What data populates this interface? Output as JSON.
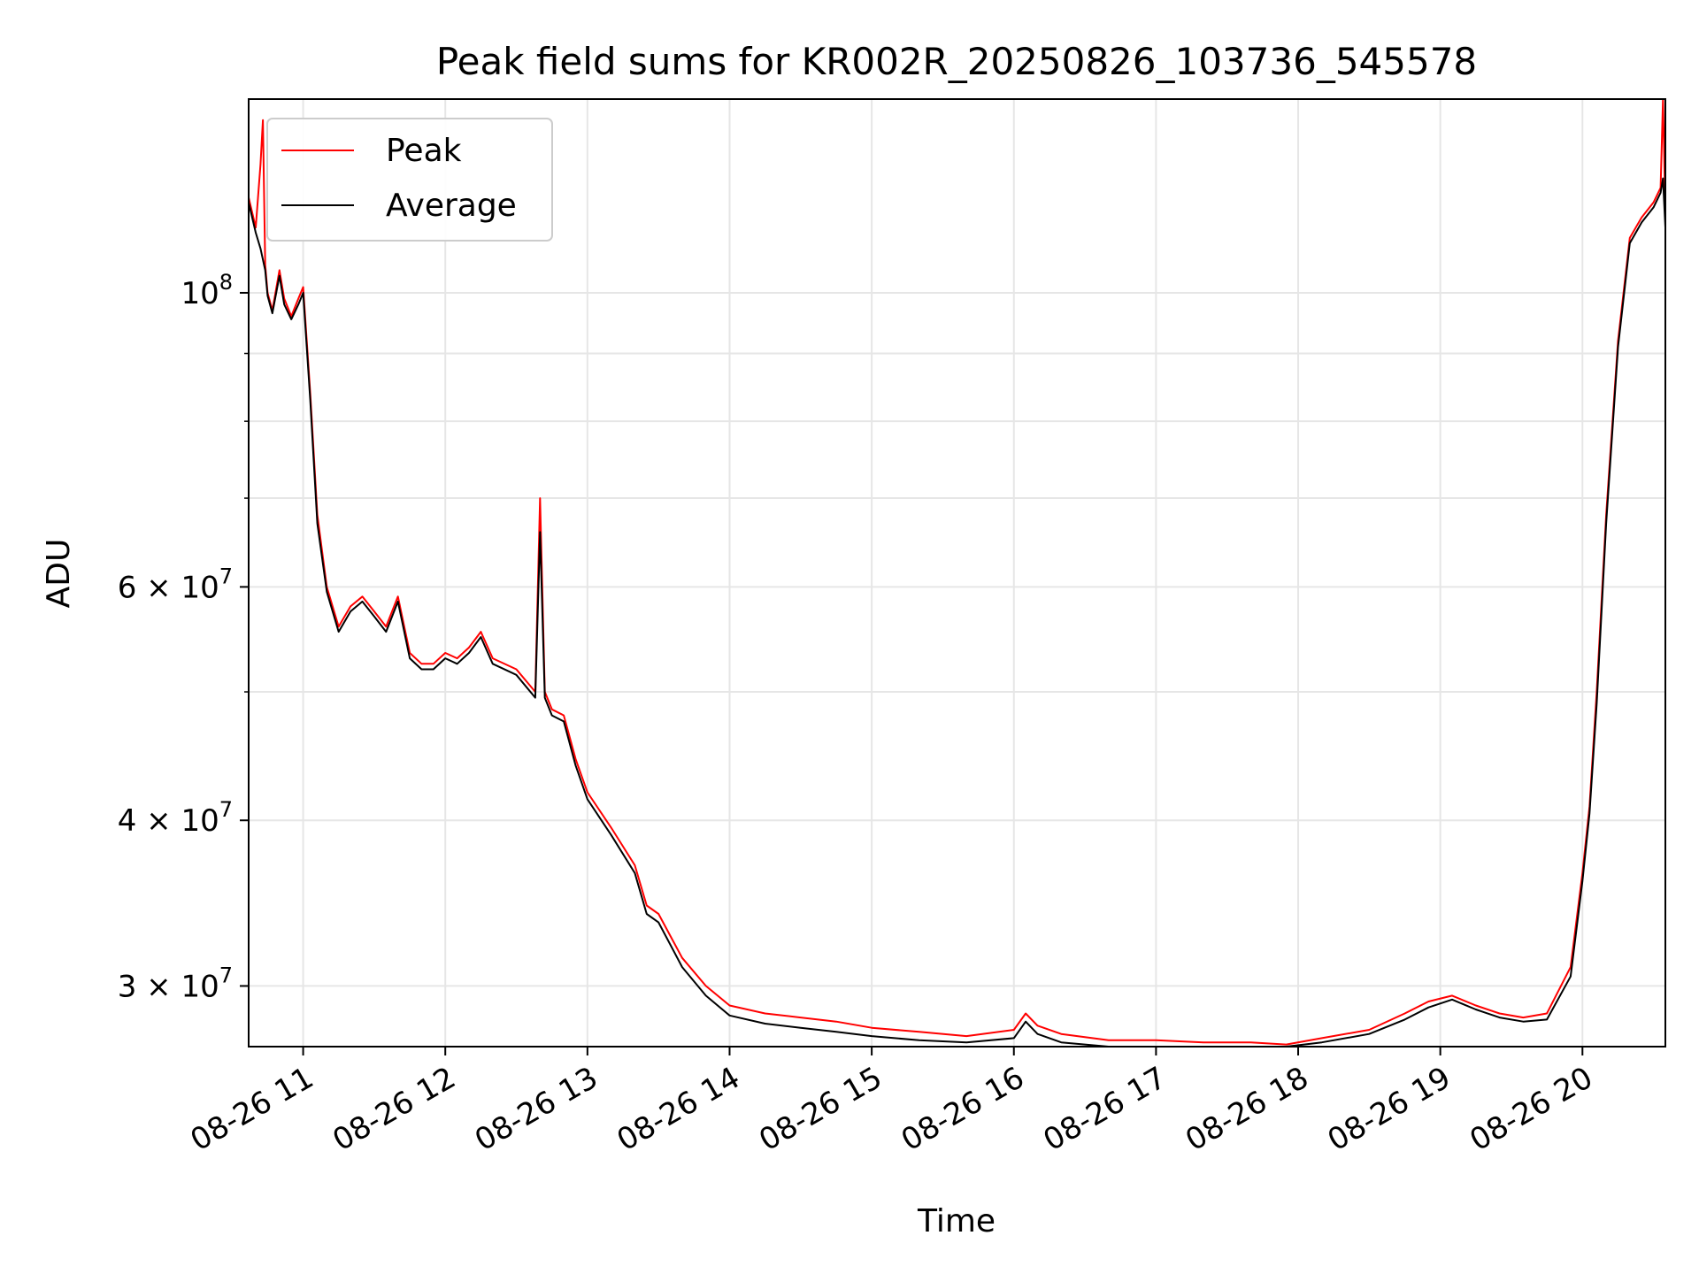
{
  "chart_data": {
    "type": "line",
    "title": "Peak field sums for KR002R_20250826_103736_545578",
    "xlabel": "Time",
    "ylabel": "ADU",
    "xscale": "time",
    "yscale": "log",
    "xlim": [
      "2025-08-26 10:37",
      "2025-08-26 20:35"
    ],
    "ylim": [
      27000000,
      140000000
    ],
    "grid": true,
    "legend": "upper-left",
    "x_ticks": [
      {
        "at": "2025-08-26 11:00",
        "label": "08-26 11"
      },
      {
        "at": "2025-08-26 12:00",
        "label": "08-26 12"
      },
      {
        "at": "2025-08-26 13:00",
        "label": "08-26 13"
      },
      {
        "at": "2025-08-26 14:00",
        "label": "08-26 14"
      },
      {
        "at": "2025-08-26 15:00",
        "label": "08-26 15"
      },
      {
        "at": "2025-08-26 16:00",
        "label": "08-26 16"
      },
      {
        "at": "2025-08-26 17:00",
        "label": "08-26 17"
      },
      {
        "at": "2025-08-26 18:00",
        "label": "08-26 18"
      },
      {
        "at": "2025-08-26 19:00",
        "label": "08-26 19"
      },
      {
        "at": "2025-08-26 20:00",
        "label": "08-26 20"
      }
    ],
    "y_ticks": [
      {
        "value": 30000000,
        "base": "3 × 10",
        "exp": "7"
      },
      {
        "value": 40000000,
        "base": "4 × 10",
        "exp": "7"
      },
      {
        "value": 60000000,
        "base": "6 × 10",
        "exp": "7"
      },
      {
        "value": 100000000,
        "base": "10",
        "exp": "8"
      }
    ],
    "y_minor_ticks": [
      50000000,
      70000000,
      80000000,
      90000000
    ],
    "series": [
      {
        "name": "Peak",
        "color": "#ff0000",
        "x": [
          "2025-08-26 10:37",
          "2025-08-26 10:40",
          "2025-08-26 10:42",
          "2025-08-26 10:43",
          "2025-08-26 10:44",
          "2025-08-26 10:45",
          "2025-08-26 10:47",
          "2025-08-26 10:50",
          "2025-08-26 10:52",
          "2025-08-26 10:55",
          "2025-08-26 10:58",
          "2025-08-26 11:00",
          "2025-08-26 11:03",
          "2025-08-26 11:06",
          "2025-08-26 11:10",
          "2025-08-26 11:15",
          "2025-08-26 11:20",
          "2025-08-26 11:25",
          "2025-08-26 11:30",
          "2025-08-26 11:35",
          "2025-08-26 11:40",
          "2025-08-26 11:45",
          "2025-08-26 11:50",
          "2025-08-26 11:55",
          "2025-08-26 12:00",
          "2025-08-26 12:05",
          "2025-08-26 12:10",
          "2025-08-26 12:15",
          "2025-08-26 12:20",
          "2025-08-26 12:30",
          "2025-08-26 12:38",
          "2025-08-26 12:40",
          "2025-08-26 12:42",
          "2025-08-26 12:45",
          "2025-08-26 12:50",
          "2025-08-26 12:55",
          "2025-08-26 13:00",
          "2025-08-26 13:10",
          "2025-08-26 13:20",
          "2025-08-26 13:25",
          "2025-08-26 13:30",
          "2025-08-26 13:40",
          "2025-08-26 13:50",
          "2025-08-26 14:00",
          "2025-08-26 14:15",
          "2025-08-26 14:30",
          "2025-08-26 14:45",
          "2025-08-26 15:00",
          "2025-08-26 15:20",
          "2025-08-26 15:40",
          "2025-08-26 16:00",
          "2025-08-26 16:05",
          "2025-08-26 16:10",
          "2025-08-26 16:20",
          "2025-08-26 16:40",
          "2025-08-26 17:00",
          "2025-08-26 17:20",
          "2025-08-26 17:40",
          "2025-08-26 17:55",
          "2025-08-26 18:10",
          "2025-08-26 18:30",
          "2025-08-26 18:45",
          "2025-08-26 18:55",
          "2025-08-26 19:05",
          "2025-08-26 19:15",
          "2025-08-26 19:25",
          "2025-08-26 19:35",
          "2025-08-26 19:45",
          "2025-08-26 19:55",
          "2025-08-26 20:00",
          "2025-08-26 20:03",
          "2025-08-26 20:06",
          "2025-08-26 20:10",
          "2025-08-26 20:15",
          "2025-08-26 20:20",
          "2025-08-26 20:25",
          "2025-08-26 20:30",
          "2025-08-26 20:33",
          "2025-08-26 20:34",
          "2025-08-26 20:35"
        ],
        "values": [
          118000000,
          112000000,
          125000000,
          135000000,
          105000000,
          100000000,
          97000000,
          104000000,
          99000000,
          96000000,
          99000000,
          101000000,
          84000000,
          68000000,
          60000000,
          56000000,
          58000000,
          59000000,
          57500000,
          56000000,
          59000000,
          53500000,
          52500000,
          52500000,
          53500000,
          53000000,
          54000000,
          55500000,
          53000000,
          52000000,
          50000000,
          70000000,
          50000000,
          48500000,
          48000000,
          44500000,
          42000000,
          39500000,
          37000000,
          34500000,
          34000000,
          31500000,
          30000000,
          29000000,
          28600000,
          28400000,
          28200000,
          27900000,
          27700000,
          27500000,
          27800000,
          28600000,
          28000000,
          27600000,
          27300000,
          27300000,
          27200000,
          27200000,
          27100000,
          27400000,
          27800000,
          28600000,
          29200000,
          29500000,
          29000000,
          28600000,
          28400000,
          28600000,
          31000000,
          36500000,
          41000000,
          50000000,
          68000000,
          92000000,
          110000000,
          114000000,
          117000000,
          120000000,
          140000000,
          115000000
        ]
      },
      {
        "name": "Average",
        "color": "#000000",
        "x": [
          "2025-08-26 10:37",
          "2025-08-26 10:40",
          "2025-08-26 10:42",
          "2025-08-26 10:44",
          "2025-08-26 10:45",
          "2025-08-26 10:47",
          "2025-08-26 10:50",
          "2025-08-26 10:52",
          "2025-08-26 10:55",
          "2025-08-26 10:58",
          "2025-08-26 11:00",
          "2025-08-26 11:03",
          "2025-08-26 11:06",
          "2025-08-26 11:10",
          "2025-08-26 11:15",
          "2025-08-26 11:20",
          "2025-08-26 11:25",
          "2025-08-26 11:30",
          "2025-08-26 11:35",
          "2025-08-26 11:40",
          "2025-08-26 11:45",
          "2025-08-26 11:50",
          "2025-08-26 11:55",
          "2025-08-26 12:00",
          "2025-08-26 12:05",
          "2025-08-26 12:10",
          "2025-08-26 12:15",
          "2025-08-26 12:20",
          "2025-08-26 12:30",
          "2025-08-26 12:38",
          "2025-08-26 12:40",
          "2025-08-26 12:42",
          "2025-08-26 12:45",
          "2025-08-26 12:50",
          "2025-08-26 12:55",
          "2025-08-26 13:00",
          "2025-08-26 13:10",
          "2025-08-26 13:20",
          "2025-08-26 13:25",
          "2025-08-26 13:30",
          "2025-08-26 13:40",
          "2025-08-26 13:50",
          "2025-08-26 14:00",
          "2025-08-26 14:15",
          "2025-08-26 14:30",
          "2025-08-26 14:45",
          "2025-08-26 15:00",
          "2025-08-26 15:20",
          "2025-08-26 15:40",
          "2025-08-26 16:00",
          "2025-08-26 16:05",
          "2025-08-26 16:10",
          "2025-08-26 16:20",
          "2025-08-26 16:40",
          "2025-08-26 17:00",
          "2025-08-26 17:20",
          "2025-08-26 17:40",
          "2025-08-26 17:55",
          "2025-08-26 18:10",
          "2025-08-26 18:30",
          "2025-08-26 18:45",
          "2025-08-26 18:55",
          "2025-08-26 19:05",
          "2025-08-26 19:15",
          "2025-08-26 19:25",
          "2025-08-26 19:35",
          "2025-08-26 19:45",
          "2025-08-26 19:55",
          "2025-08-26 20:00",
          "2025-08-26 20:03",
          "2025-08-26 20:06",
          "2025-08-26 20:10",
          "2025-08-26 20:15",
          "2025-08-26 20:20",
          "2025-08-26 20:25",
          "2025-08-26 20:30",
          "2025-08-26 20:33",
          "2025-08-26 20:34",
          "2025-08-26 20:35"
        ],
        "values": [
          117000000,
          111000000,
          108000000,
          104000000,
          99500000,
          96500000,
          103000000,
          98000000,
          95500000,
          98000000,
          100000000,
          83000000,
          67000000,
          59500000,
          55500000,
          57500000,
          58500000,
          57000000,
          55500000,
          58500000,
          53000000,
          52000000,
          52000000,
          53000000,
          52500000,
          53500000,
          55000000,
          52500000,
          51500000,
          49500000,
          66000000,
          49500000,
          48000000,
          47500000,
          44000000,
          41500000,
          39000000,
          36500000,
          34000000,
          33500000,
          31000000,
          29500000,
          28500000,
          28100000,
          27900000,
          27700000,
          27500000,
          27300000,
          27200000,
          27400000,
          28200000,
          27600000,
          27200000,
          27000000,
          27000000,
          27000000,
          27000000,
          27000000,
          27200000,
          27600000,
          28300000,
          28900000,
          29300000,
          28800000,
          28400000,
          28200000,
          28300000,
          30500000,
          36000000,
          40500000,
          49000000,
          67000000,
          91000000,
          109000000,
          113000000,
          116000000,
          119000000,
          122000000,
          112000000
        ]
      }
    ]
  }
}
